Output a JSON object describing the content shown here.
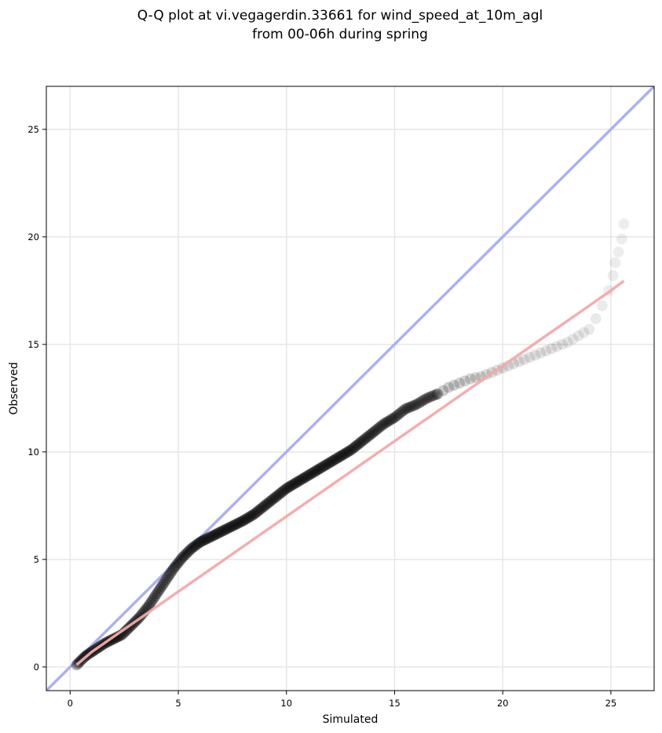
{
  "chart_data": {
    "type": "scatter",
    "title_line1": "Q-Q plot at vi.vegagerdin.33661 for wind_speed_at_10m_agl",
    "title_line2": "from 00-06h during spring",
    "xlabel": "Simulated",
    "ylabel": "Observed",
    "xlim": [
      -1.1,
      27
    ],
    "ylim": [
      -1.1,
      27
    ],
    "xticks": [
      0,
      5,
      10,
      15,
      20,
      25
    ],
    "yticks": [
      0,
      5,
      10,
      15,
      20,
      25
    ],
    "grid": true,
    "colors": {
      "points": "#000000",
      "identity_line": "#a8acf2",
      "fit_line": "#f4a9a9"
    },
    "identity_line": {
      "x": [
        -1.1,
        27
      ],
      "y": [
        -1.1,
        27
      ]
    },
    "fit_line": {
      "x": [
        0.3,
        1,
        2,
        3,
        4,
        5,
        6,
        7,
        8,
        9,
        10,
        11,
        12,
        13,
        14,
        15,
        16,
        17,
        18,
        19,
        20,
        21,
        22,
        23,
        24,
        25,
        25.6
      ],
      "y": [
        0.1,
        0.7,
        1.4,
        2.1,
        2.8,
        3.5,
        4.2,
        4.9,
        5.6,
        6.3,
        7.0,
        7.7,
        8.4,
        9.1,
        9.8,
        10.5,
        11.2,
        11.9,
        12.6,
        13.3,
        14.0,
        14.7,
        15.4,
        16.1,
        16.8,
        17.5,
        17.95
      ]
    },
    "points": {
      "x": [
        0.3,
        0.5,
        0.7,
        1.0,
        1.3,
        1.6,
        2.0,
        2.4,
        2.8,
        3.2,
        3.6,
        4.0,
        4.4,
        4.8,
        5.2,
        5.6,
        6.0,
        6.4,
        6.8,
        7.2,
        7.6,
        8.0,
        8.5,
        9.0,
        9.5,
        10.0,
        10.5,
        11.0,
        11.5,
        12.0,
        12.5,
        13.0,
        13.5,
        14.0,
        14.5,
        15.0,
        15.5,
        16.0,
        16.5,
        17.0,
        17.5,
        18.0,
        18.5,
        19.0,
        19.5,
        20.0,
        20.5,
        21.0,
        21.5,
        22.0,
        22.5,
        23.0,
        23.5,
        24.0,
        24.3,
        24.6,
        24.9,
        25.1,
        25.2,
        25.35,
        25.5,
        25.6
      ],
      "y": [
        0.1,
        0.3,
        0.5,
        0.7,
        0.9,
        1.1,
        1.3,
        1.5,
        1.9,
        2.3,
        2.8,
        3.4,
        4.0,
        4.6,
        5.1,
        5.5,
        5.8,
        6.0,
        6.2,
        6.4,
        6.6,
        6.8,
        7.1,
        7.5,
        7.9,
        8.3,
        8.6,
        8.9,
        9.2,
        9.5,
        9.8,
        10.1,
        10.5,
        10.9,
        11.3,
        11.6,
        12.0,
        12.2,
        12.5,
        12.7,
        13.0,
        13.2,
        13.4,
        13.5,
        13.7,
        13.9,
        14.1,
        14.3,
        14.5,
        14.7,
        14.9,
        15.1,
        15.4,
        15.7,
        16.2,
        16.8,
        17.5,
        18.2,
        18.8,
        19.3,
        19.9,
        20.6
      ]
    }
  }
}
